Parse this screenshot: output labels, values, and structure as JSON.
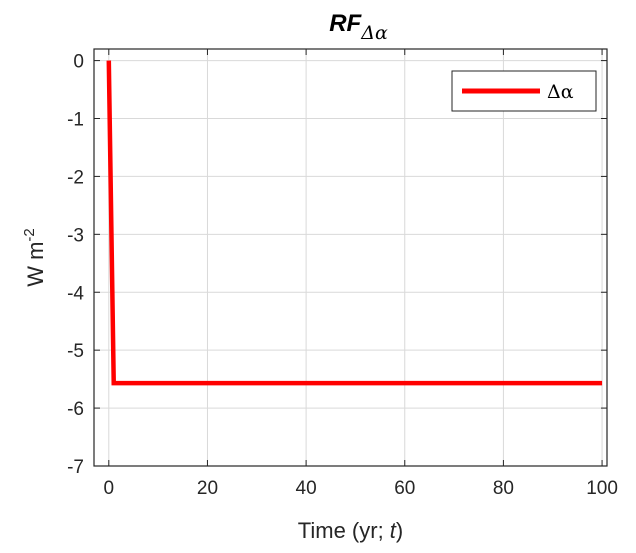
{
  "chart_data": {
    "type": "line",
    "title": "RF",
    "title_subscript": "Δα",
    "xlabel": "Time (yr; t)",
    "xlabel_parts": [
      "Time (yr; ",
      "t",
      ")"
    ],
    "ylabel": "W m-2",
    "ylabel_base": "W m",
    "ylabel_sup": "-2",
    "xlim": [
      -3,
      101
    ],
    "ylim": [
      -7,
      0.2
    ],
    "xticks": [
      0,
      20,
      40,
      60,
      80,
      100
    ],
    "yticks": [
      0,
      -1,
      -2,
      -3,
      -4,
      -5,
      -6,
      -7
    ],
    "grid": true,
    "legend_position": "top-right",
    "series": [
      {
        "name": "Δα",
        "color": "#ff0000",
        "x": [
          0,
          1,
          100
        ],
        "y": [
          0,
          -5.57,
          -5.57
        ]
      }
    ]
  }
}
